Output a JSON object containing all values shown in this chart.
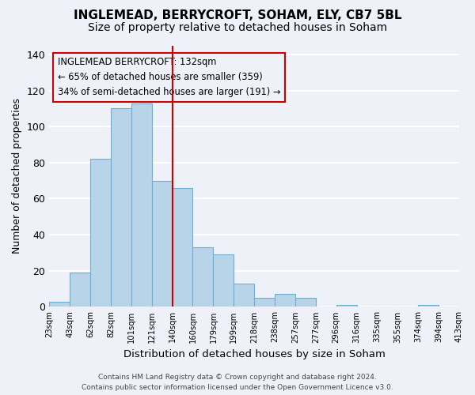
{
  "title": "INGLEMEAD, BERRYCROFT, SOHAM, ELY, CB7 5BL",
  "subtitle": "Size of property relative to detached houses in Soham",
  "xlabel": "Distribution of detached houses by size in Soham",
  "ylabel": "Number of detached properties",
  "bar_values": [
    3,
    19,
    82,
    110,
    113,
    70,
    66,
    33,
    29,
    13,
    5,
    7,
    5,
    0,
    1,
    0,
    0,
    0,
    1,
    0
  ],
  "bar_labels": [
    "23sqm",
    "43sqm",
    "62sqm",
    "82sqm",
    "101sqm",
    "121sqm",
    "140sqm",
    "160sqm",
    "179sqm",
    "199sqm",
    "218sqm",
    "238sqm",
    "257sqm",
    "277sqm",
    "296sqm",
    "316sqm",
    "335sqm",
    "355sqm",
    "374sqm",
    "394sqm",
    "413sqm"
  ],
  "bar_color": "#b8d4e8",
  "bar_edge_color": "#6aafd6",
  "vline_x": 5.5,
  "vline_color": "#cc0000",
  "ylim": [
    0,
    145
  ],
  "yticks": [
    0,
    20,
    40,
    60,
    80,
    100,
    120,
    140
  ],
  "annotation_title": "INGLEMEAD BERRYCROFT: 132sqm",
  "annotation_line1": "← 65% of detached houses are smaller (359)",
  "annotation_line2": "34% of semi-detached houses are larger (191) →",
  "footer_line1": "Contains HM Land Registry data © Crown copyright and database right 2024.",
  "footer_line2": "Contains public sector information licensed under the Open Government Licence v3.0.",
  "background_color": "#eef2f8",
  "grid_color": "#ffffff",
  "title_fontsize": 11,
  "subtitle_fontsize": 10
}
